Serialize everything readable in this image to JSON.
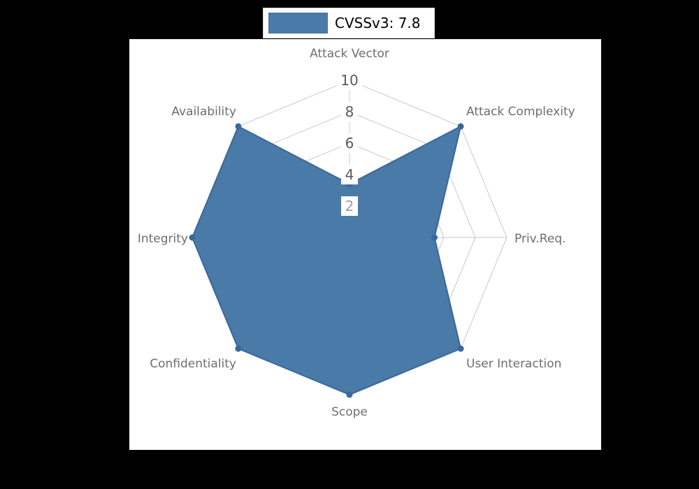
{
  "page": {
    "background": "#000000",
    "panel_background": "#ffffff"
  },
  "legend": {
    "label": "CVSSv3: 7.8",
    "swatch_color": "#4a7aa8"
  },
  "chart_data": {
    "type": "radar",
    "title": "CVSSv3: 7.8",
    "categories": [
      "Attack Vector",
      "Attack Complexity",
      "Priv.Req.",
      "User Interaction",
      "Scope",
      "Confidentiality",
      "Integrity",
      "Availability"
    ],
    "series": [
      {
        "name": "CVSSv3: 7.8",
        "values": [
          3.4,
          10,
          5.4,
          10,
          10,
          10,
          10,
          10
        ],
        "fill_color": "#4a7aa8",
        "edge_color": "#3a689a",
        "fill_opacity": 1
      }
    ],
    "r_max": 10,
    "radial_ticks": [
      2,
      4,
      6,
      8,
      10
    ],
    "radial_tick_colors": [
      "#9e9e9e",
      "#5a5a5a",
      "#5a5a5a",
      "#5a5a5a",
      "#5a5a5a"
    ],
    "grid": true,
    "grid_color": "#c9c9c9",
    "axis_label_color": "#6e6e6e",
    "legend_position": "top-center"
  }
}
